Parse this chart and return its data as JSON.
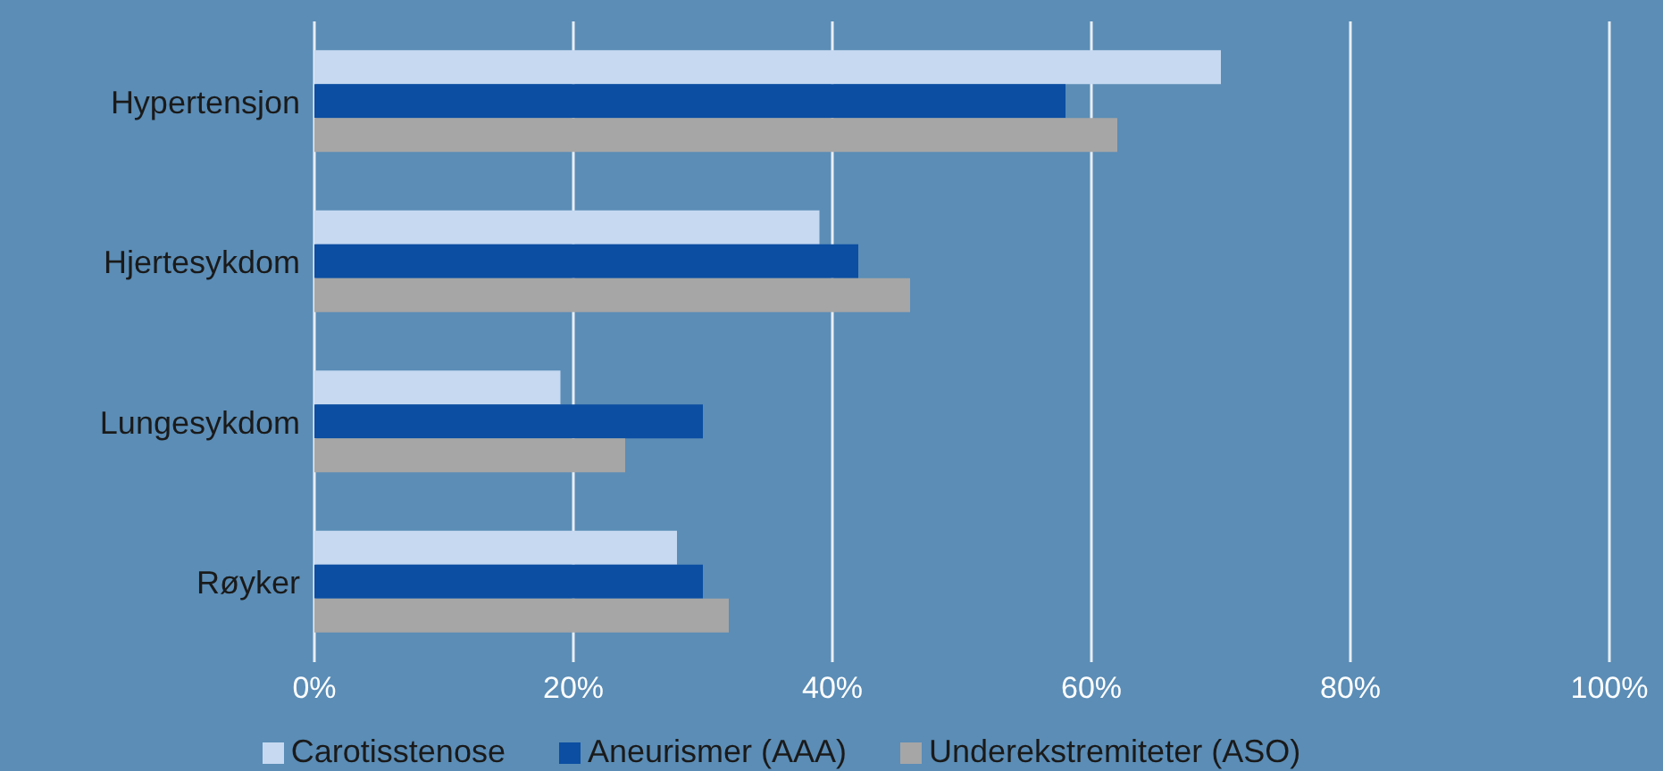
{
  "chart_data": {
    "type": "bar",
    "orientation": "horizontal",
    "categories": [
      "Hypertensjon",
      "Hjertesykdom",
      "Lungesykdom",
      "Røyker"
    ],
    "series": [
      {
        "name": "Carotisstenose",
        "color": "#c6d9f1",
        "values": [
          70,
          39,
          19,
          28
        ]
      },
      {
        "name": "Aneurismer (AAA)",
        "color": "#0b4ea2",
        "values": [
          58,
          42,
          30,
          30
        ]
      },
      {
        "name": "Underekstremiteter (ASO)",
        "color": "#a6a6a6",
        "values": [
          62,
          46,
          24,
          32
        ]
      }
    ],
    "xlim": [
      0,
      100
    ],
    "xticks": [
      {
        "value": 0,
        "label": "0%"
      },
      {
        "value": 20,
        "label": "20%"
      },
      {
        "value": 40,
        "label": "40%"
      },
      {
        "value": 60,
        "label": "60%"
      },
      {
        "value": 80,
        "label": "80%"
      },
      {
        "value": 100,
        "label": "100%"
      }
    ],
    "grid": "x",
    "legend": "bottom"
  }
}
